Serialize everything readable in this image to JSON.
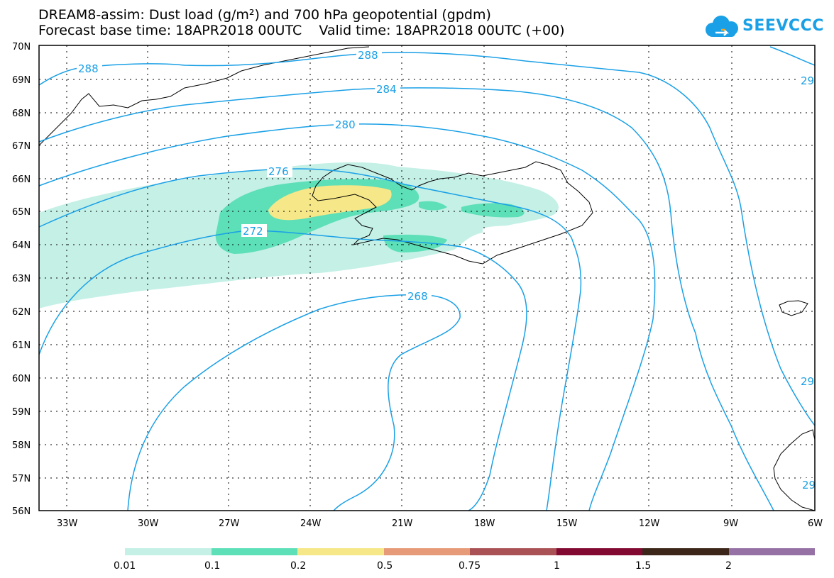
{
  "header": {
    "title_line1": "DREAM8-assim: Dust load (g/m²) and 700 hPa geopotential (gpdm)",
    "title_line2": "Forecast base time: 18APR2018 00UTC    Valid time: 18APR2018 00UTC (+00)",
    "logo_text": "SEEVCCC"
  },
  "map": {
    "lat_labels": [
      "70N",
      "69N",
      "68N",
      "67N",
      "66N",
      "65N",
      "64N",
      "63N",
      "62N",
      "61N",
      "60N",
      "59N",
      "58N",
      "57N",
      "56N"
    ],
    "lon_labels": [
      "33W",
      "30W",
      "27W",
      "24W",
      "21W",
      "18W",
      "15W",
      "12W",
      "9W",
      "6W"
    ],
    "contour_labels": [
      "288",
      "288",
      "284",
      "280",
      "276",
      "272",
      "268",
      "29",
      "29",
      "29"
    ],
    "contour_color": "#1aa0e6",
    "dust_colors": [
      "#c4f0e6",
      "#5ddfb8",
      "#f6e788"
    ]
  },
  "colorbar": {
    "colors": [
      "#c4f0e6",
      "#5ddfb8",
      "#f6e788",
      "#e69a78",
      "#a95154",
      "#820a32",
      "#3c2519",
      "#9671a5"
    ],
    "labels": [
      "0.01",
      "0.1",
      "0.2",
      "0.5",
      "0.75",
      "1",
      "1.5",
      "2"
    ]
  }
}
